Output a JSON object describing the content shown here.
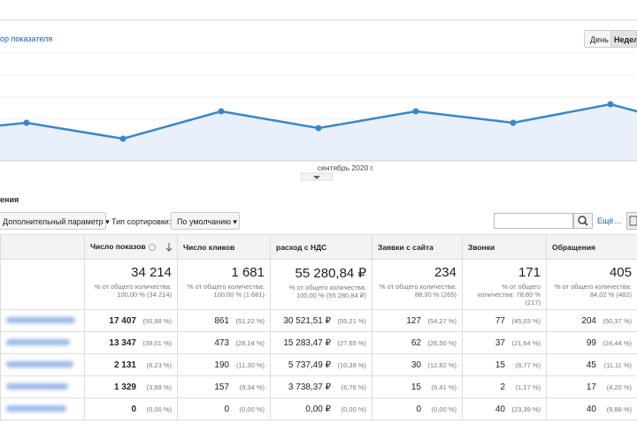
{
  "header": {
    "metric_picker": "ор показателя",
    "buttons": [
      "День",
      "Недел"
    ]
  },
  "chart": {
    "x_label": "сентябрь 2020 г."
  },
  "section_title": "ения",
  "toolbar": {
    "secondary_dimension": "Дополнительный параметр",
    "sort_label": "Тип сортировки:",
    "sort_value": "По умолчанию",
    "more": "Ещё…"
  },
  "table": {
    "columns": [
      "Число показов",
      "Число кликов",
      "расход с НДС",
      "Заявки с сайта",
      "Звонки",
      "Обращения"
    ],
    "totals": [
      {
        "value": "34 214",
        "note": "% от общего количества: 100,00 % (34 214)"
      },
      {
        "value": "1 681",
        "note": "% от общего количества: 100,00 % (1 681)"
      },
      {
        "value": "55 280,84 ₽",
        "note": "% от общего количества: 100,00 % (55 280,84 ₽)"
      },
      {
        "value": "234",
        "note": "% от общего количества: 88,30 % (265)"
      },
      {
        "value": "171",
        "note": "% от общего количества: 78,80 % (217)"
      },
      {
        "value": "405",
        "note": "% от общего количества: 84,02 % (482)"
      }
    ],
    "rows": [
      [
        {
          "value": "17 407",
          "share": "(50,88 %)"
        },
        {
          "value": "861",
          "share": "(51,22 %)"
        },
        {
          "value": "30 521,51 ₽",
          "share": "(55,21 %)"
        },
        {
          "value": "127",
          "share": "(54,27 %)"
        },
        {
          "value": "77",
          "share": "(45,03 %)"
        },
        {
          "value": "204",
          "share": "(50,37 %)"
        }
      ],
      [
        {
          "value": "13 347",
          "share": "(39,01 %)"
        },
        {
          "value": "473",
          "share": "(28,14 %)"
        },
        {
          "value": "15 283,47 ₽",
          "share": "(27,65 %)"
        },
        {
          "value": "62",
          "share": "(26,50 %)"
        },
        {
          "value": "37",
          "share": "(21,64 %)"
        },
        {
          "value": "99",
          "share": "(24,44 %)"
        }
      ],
      [
        {
          "value": "2 131",
          "share": "(6,23 %)"
        },
        {
          "value": "190",
          "share": "(11,30 %)"
        },
        {
          "value": "5 737,49 ₽",
          "share": "(10,38 %)"
        },
        {
          "value": "30",
          "share": "(12,82 %)"
        },
        {
          "value": "15",
          "share": "(8,77 %)"
        },
        {
          "value": "45",
          "share": "(11,11 %)"
        }
      ],
      [
        {
          "value": "1 329",
          "share": "(3,88 %)"
        },
        {
          "value": "157",
          "share": "(9,34 %)"
        },
        {
          "value": "3 738,37 ₽",
          "share": "(6,76 %)"
        },
        {
          "value": "15",
          "share": "(6,41 %)"
        },
        {
          "value": "2",
          "share": "(1,17 %)"
        },
        {
          "value": "17",
          "share": "(4,20 %)"
        }
      ],
      [
        {
          "value": "0",
          "share": "(0,00 %)"
        },
        {
          "value": "0",
          "share": "(0,00 %)"
        },
        {
          "value": "0,00 ₽",
          "share": "(0,00 %)"
        },
        {
          "value": "0",
          "share": "(0,00 %)"
        },
        {
          "value": "40",
          "share": "(23,39 %)"
        },
        {
          "value": "40",
          "share": "(9,88 %)"
        }
      ]
    ]
  }
}
